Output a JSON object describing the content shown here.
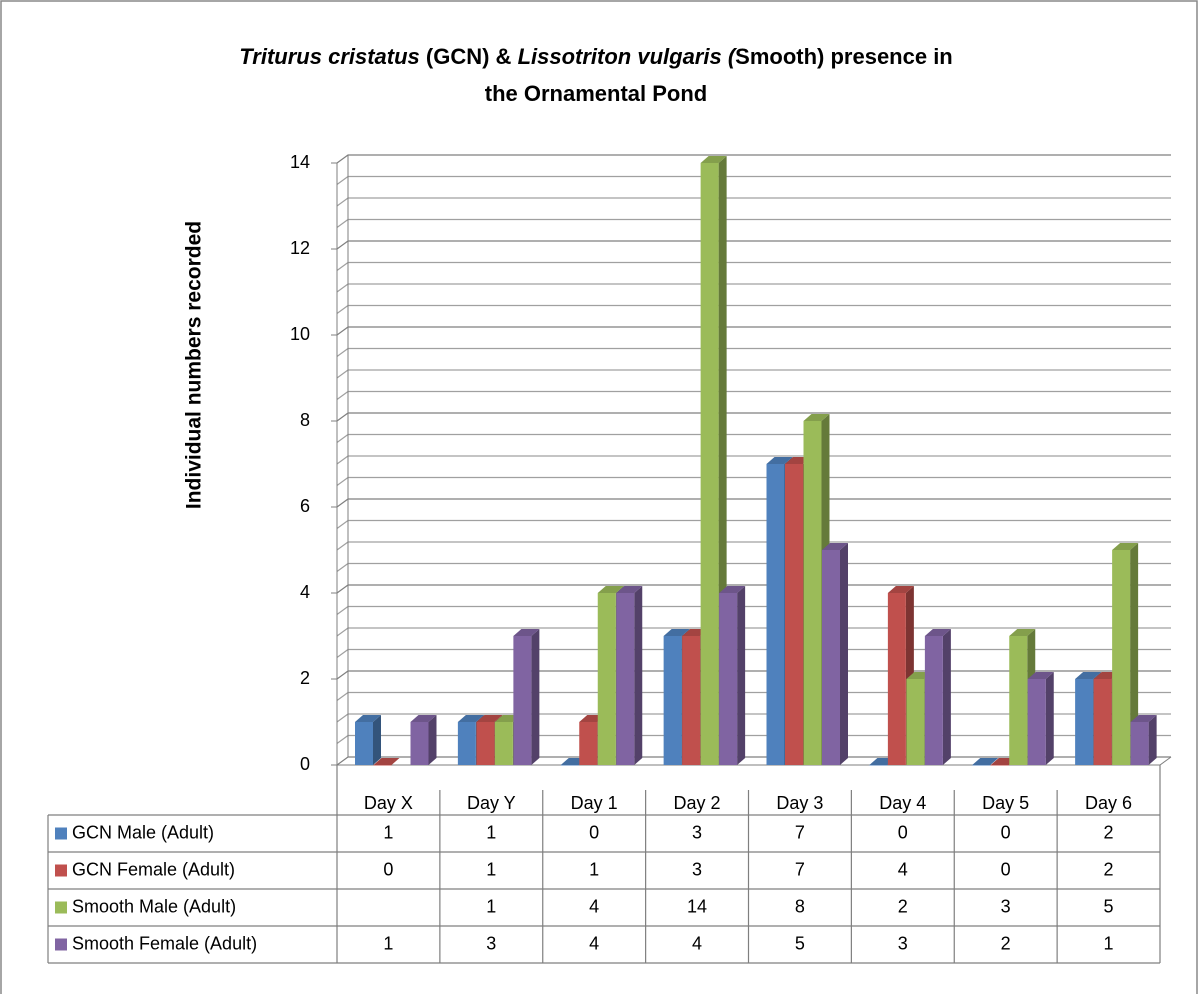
{
  "chart_data": {
    "type": "bar3d",
    "title": [
      {
        "text": "Triturus cristatus",
        "italic": true
      },
      {
        "text": " (GCN) & ",
        "italic": false
      },
      {
        "text": "Lissotriton vulgaris (",
        "italic": true
      },
      {
        "text": "Smooth)  presence in",
        "italic": false
      },
      {
        "text": "the Ornamental Pond",
        "italic": false
      }
    ],
    "y_label": "Individual numbers recorded",
    "categories": [
      "Day X",
      "Day Y",
      "Day 1",
      "Day 2",
      "Day 3",
      "Day 4",
      "Day 5",
      "Day 6"
    ],
    "series": [
      {
        "name": "GCN Male (Adult)",
        "color": "#4f81bd",
        "values": [
          1,
          1,
          0,
          3,
          7,
          0,
          0,
          2
        ]
      },
      {
        "name": "GCN Female (Adult)",
        "color": "#c0504d",
        "values": [
          0,
          1,
          1,
          3,
          7,
          4,
          0,
          2
        ]
      },
      {
        "name": "Smooth Male (Adult)",
        "color": "#9bbb59",
        "values": [
          null,
          1,
          4,
          14,
          8,
          2,
          3,
          5
        ]
      },
      {
        "name": "Smooth Female (Adult)",
        "color": "#8064a2",
        "values": [
          1,
          3,
          4,
          4,
          5,
          3,
          2,
          1
        ]
      }
    ],
    "ylim": [
      0,
      14
    ],
    "yticks": [
      0,
      2,
      4,
      6,
      8,
      10,
      12,
      14
    ],
    "minor_gridlines": [
      0.5,
      1,
      1.5,
      2.5,
      3,
      3.5,
      4.5,
      5,
      5.5,
      6.5,
      7,
      7.5,
      8.5,
      9,
      9.5,
      10.5,
      11,
      11.5,
      12.5,
      13,
      13.5
    ],
    "grid": true,
    "data_table": true
  }
}
